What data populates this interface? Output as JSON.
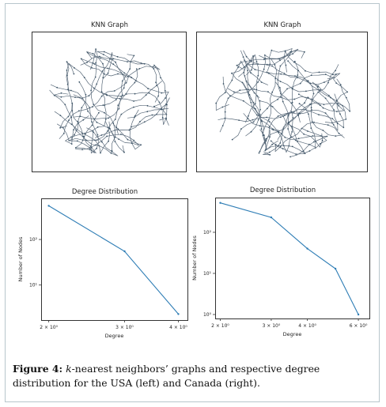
{
  "figure": {
    "caption_label": "Figure 4:",
    "caption_k": "k",
    "caption_rest": "-nearest neighbors’ graphs and respective degree distribution for the USA (left) and Canada (right)."
  },
  "chart_data": [
    {
      "type": "network",
      "title": "KNN Graph"
    },
    {
      "type": "network",
      "title": "KNN Graph"
    },
    {
      "type": "line",
      "title": "Degree Distribution",
      "xlabel": "Degree",
      "ylabel": "Number of Nodes",
      "xscale": "log",
      "yscale": "log",
      "xticks": [
        "2 × 10⁰",
        "3 × 10⁰",
        "4 × 10⁰"
      ],
      "yticks": [
        "10¹",
        "10²"
      ],
      "x": [
        2,
        3,
        4
      ],
      "y": [
        550,
        55,
        2.3
      ],
      "grid": false,
      "color": "#2e7db5"
    },
    {
      "type": "line",
      "title": "Degree Distribution",
      "xlabel": "Degree",
      "ylabel": "Number of Nodes",
      "xscale": "log",
      "yscale": "log",
      "xticks": [
        "2 × 10⁰",
        "3 × 10⁰",
        "4 × 10⁰",
        "6 × 10⁰"
      ],
      "yticks": [
        "10⁰",
        "10¹",
        "10²"
      ],
      "x": [
        2,
        3,
        4,
        5,
        6
      ],
      "y": [
        520,
        230,
        40,
        13,
        1
      ],
      "grid": false,
      "color": "#2e7db5"
    }
  ]
}
